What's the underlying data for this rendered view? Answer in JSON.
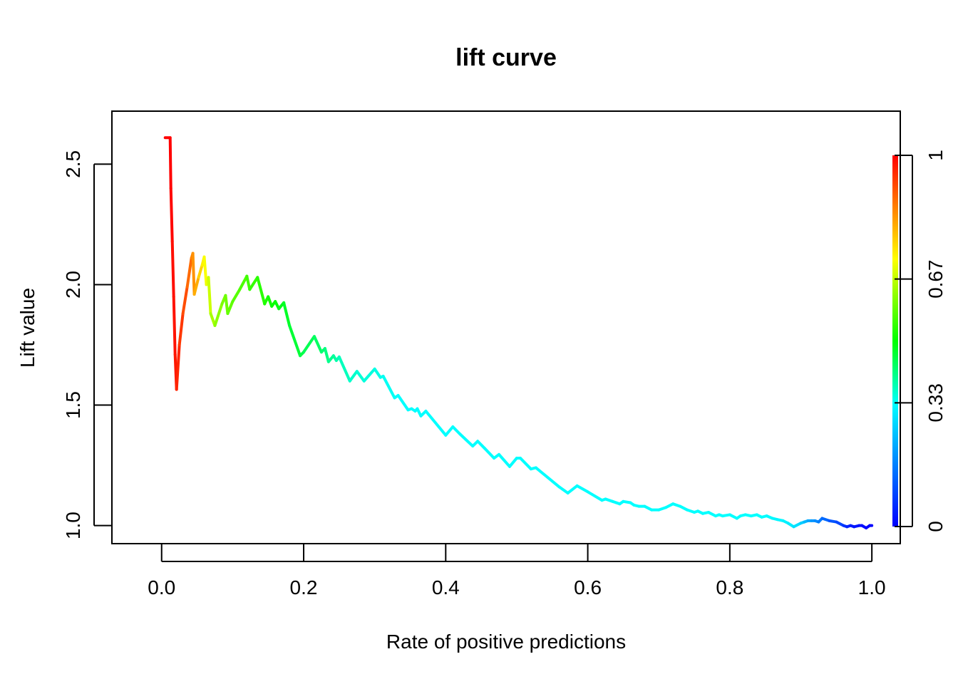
{
  "chart_data": {
    "type": "line",
    "title": "lift curve",
    "xlabel": "Rate of positive predictions",
    "ylabel": "Lift value",
    "xlim": [
      -0.07,
      1.04
    ],
    "ylim": [
      0.925,
      2.72
    ],
    "x_ticks": [
      "0.0",
      "0.2",
      "0.4",
      "0.6",
      "0.8",
      "1.0"
    ],
    "y_ticks": [
      "1.0",
      "1.5",
      "2.0",
      "2.5"
    ],
    "colorbar": {
      "ticks": [
        "0",
        "0.33",
        "0.67",
        "1"
      ],
      "colors": [
        "#0000ff",
        "#00ffff",
        "#00ff00",
        "#ffff00",
        "#ff0000"
      ]
    },
    "grid": false,
    "series": [
      {
        "points": [
          [
            0.005,
            2.61,
            1.0
          ],
          [
            0.012,
            2.61,
            1.0
          ],
          [
            0.013,
            2.4,
            1.0
          ],
          [
            0.015,
            2.18,
            0.99
          ],
          [
            0.017,
            1.95,
            0.98
          ],
          [
            0.019,
            1.71,
            0.98
          ],
          [
            0.021,
            1.565,
            0.97
          ],
          [
            0.025,
            1.75,
            0.95
          ],
          [
            0.03,
            1.88,
            0.93
          ],
          [
            0.036,
            1.99,
            0.9
          ],
          [
            0.042,
            2.11,
            0.87
          ],
          [
            0.044,
            2.13,
            0.85
          ],
          [
            0.046,
            1.96,
            0.83
          ],
          [
            0.052,
            2.03,
            0.79
          ],
          [
            0.057,
            2.08,
            0.75
          ],
          [
            0.06,
            2.115,
            0.72
          ],
          [
            0.063,
            2.0,
            0.71
          ],
          [
            0.066,
            2.03,
            0.69
          ],
          [
            0.069,
            1.88,
            0.66
          ],
          [
            0.075,
            1.83,
            0.63
          ],
          [
            0.085,
            1.92,
            0.61
          ],
          [
            0.09,
            1.955,
            0.6
          ],
          [
            0.093,
            1.88,
            0.59
          ],
          [
            0.1,
            1.93,
            0.58
          ],
          [
            0.11,
            1.98,
            0.57
          ],
          [
            0.12,
            2.035,
            0.56
          ],
          [
            0.124,
            1.98,
            0.55
          ],
          [
            0.135,
            2.03,
            0.54
          ],
          [
            0.145,
            1.92,
            0.53
          ],
          [
            0.15,
            1.95,
            0.52
          ],
          [
            0.155,
            1.91,
            0.51
          ],
          [
            0.16,
            1.93,
            0.5
          ],
          [
            0.165,
            1.9,
            0.49
          ],
          [
            0.172,
            1.925,
            0.48
          ],
          [
            0.18,
            1.83,
            0.47
          ],
          [
            0.195,
            1.705,
            0.46
          ],
          [
            0.2,
            1.72,
            0.45
          ],
          [
            0.215,
            1.785,
            0.44
          ],
          [
            0.225,
            1.72,
            0.43
          ],
          [
            0.23,
            1.735,
            0.42
          ],
          [
            0.235,
            1.68,
            0.41
          ],
          [
            0.242,
            1.705,
            0.4
          ],
          [
            0.246,
            1.685,
            0.39
          ],
          [
            0.25,
            1.7,
            0.38
          ],
          [
            0.265,
            1.6,
            0.37
          ],
          [
            0.275,
            1.64,
            0.36
          ],
          [
            0.285,
            1.6,
            0.355
          ],
          [
            0.3,
            1.65,
            0.35
          ],
          [
            0.308,
            1.615,
            0.345
          ],
          [
            0.312,
            1.62,
            0.34
          ],
          [
            0.328,
            1.53,
            0.335
          ],
          [
            0.333,
            1.54,
            0.33
          ],
          [
            0.347,
            1.48,
            0.33
          ],
          [
            0.352,
            1.485,
            0.33
          ],
          [
            0.357,
            1.475,
            0.33
          ],
          [
            0.36,
            1.485,
            0.33
          ],
          [
            0.365,
            1.455,
            0.33
          ],
          [
            0.372,
            1.475,
            0.33
          ],
          [
            0.4,
            1.375,
            0.33
          ],
          [
            0.41,
            1.41,
            0.33
          ],
          [
            0.42,
            1.38,
            0.33
          ],
          [
            0.438,
            1.33,
            0.33
          ],
          [
            0.445,
            1.35,
            0.33
          ],
          [
            0.455,
            1.32,
            0.33
          ],
          [
            0.468,
            1.28,
            0.33
          ],
          [
            0.475,
            1.295,
            0.33
          ],
          [
            0.49,
            1.245,
            0.33
          ],
          [
            0.5,
            1.28,
            0.33
          ],
          [
            0.505,
            1.28,
            0.33
          ],
          [
            0.52,
            1.235,
            0.33
          ],
          [
            0.527,
            1.24,
            0.33
          ],
          [
            0.56,
            1.16,
            0.33
          ],
          [
            0.572,
            1.135,
            0.33
          ],
          [
            0.585,
            1.165,
            0.33
          ],
          [
            0.6,
            1.14,
            0.33
          ],
          [
            0.62,
            1.105,
            0.33
          ],
          [
            0.625,
            1.11,
            0.33
          ],
          [
            0.635,
            1.1,
            0.33
          ],
          [
            0.64,
            1.095,
            0.33
          ],
          [
            0.645,
            1.09,
            0.33
          ],
          [
            0.65,
            1.1,
            0.33
          ],
          [
            0.66,
            1.095,
            0.33
          ],
          [
            0.665,
            1.085,
            0.33
          ],
          [
            0.672,
            1.08,
            0.33
          ],
          [
            0.68,
            1.08,
            0.33
          ],
          [
            0.69,
            1.065,
            0.33
          ],
          [
            0.7,
            1.065,
            0.33
          ],
          [
            0.71,
            1.075,
            0.33
          ],
          [
            0.72,
            1.09,
            0.33
          ],
          [
            0.73,
            1.08,
            0.33
          ],
          [
            0.74,
            1.065,
            0.33
          ],
          [
            0.75,
            1.055,
            0.33
          ],
          [
            0.755,
            1.06,
            0.33
          ],
          [
            0.762,
            1.05,
            0.33
          ],
          [
            0.77,
            1.055,
            0.33
          ],
          [
            0.78,
            1.04,
            0.33
          ],
          [
            0.785,
            1.045,
            0.33
          ],
          [
            0.79,
            1.04,
            0.33
          ],
          [
            0.8,
            1.045,
            0.33
          ],
          [
            0.81,
            1.03,
            0.33
          ],
          [
            0.815,
            1.04,
            0.33
          ],
          [
            0.822,
            1.045,
            0.33
          ],
          [
            0.83,
            1.04,
            0.33
          ],
          [
            0.838,
            1.045,
            0.33
          ],
          [
            0.845,
            1.035,
            0.33
          ],
          [
            0.852,
            1.04,
            0.33
          ],
          [
            0.86,
            1.03,
            0.32
          ],
          [
            0.867,
            1.025,
            0.32
          ],
          [
            0.875,
            1.02,
            0.32
          ],
          [
            0.882,
            1.01,
            0.31
          ],
          [
            0.89,
            0.995,
            0.3
          ],
          [
            0.9,
            1.01,
            0.28
          ],
          [
            0.905,
            1.015,
            0.25
          ],
          [
            0.91,
            1.02,
            0.23
          ],
          [
            0.915,
            1.02,
            0.2
          ],
          [
            0.92,
            1.02,
            0.19
          ],
          [
            0.925,
            1.015,
            0.17
          ],
          [
            0.93,
            1.03,
            0.15
          ],
          [
            0.94,
            1.02,
            0.12
          ],
          [
            0.95,
            1.015,
            0.1
          ],
          [
            0.96,
            1.0,
            0.08
          ],
          [
            0.965,
            0.995,
            0.05
          ],
          [
            0.97,
            1.0,
            0.04
          ],
          [
            0.975,
            0.995,
            0.03
          ],
          [
            0.982,
            1.0,
            0.02
          ],
          [
            0.986,
            1.0,
            0.02
          ],
          [
            0.992,
            0.99,
            0.01
          ],
          [
            0.997,
            1.0,
            0.0
          ],
          [
            1.0,
            1.0,
            0.0
          ]
        ]
      }
    ]
  }
}
